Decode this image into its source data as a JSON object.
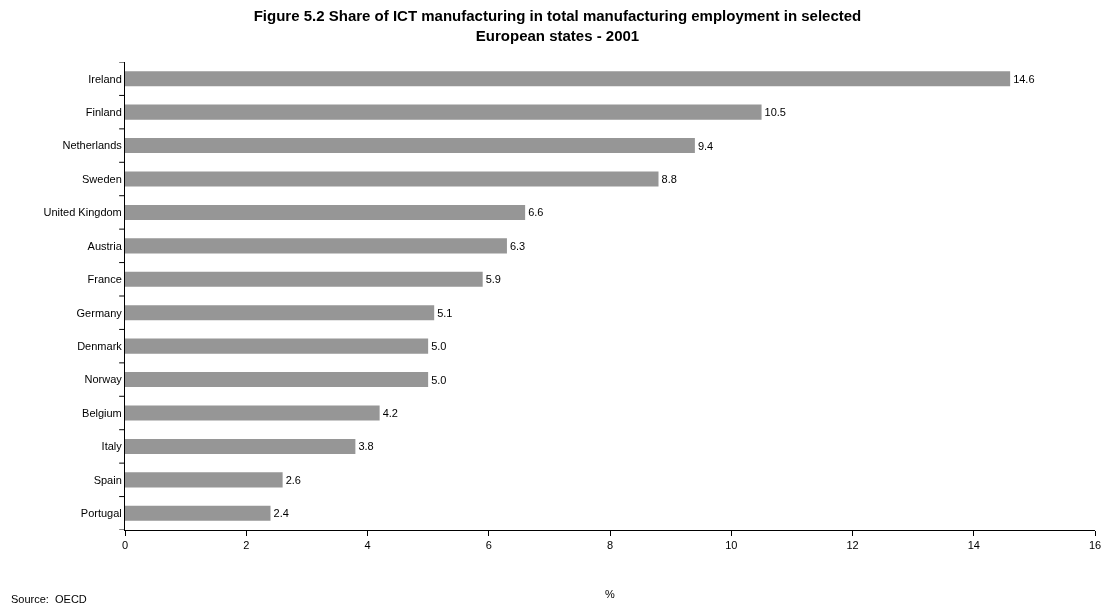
{
  "chart_data": {
    "type": "bar",
    "orientation": "horizontal",
    "title": "Figure 5.2 Share of ICT manufacturing in total manufacturing employment in selected European states - 2001",
    "xlabel": "%",
    "categories": [
      "Ireland",
      "Finland",
      "Netherlands",
      "Sweden",
      "United Kingdom",
      "Austria",
      "France",
      "Germany",
      "Denmark",
      "Norway",
      "Belgium",
      "Italy",
      "Spain",
      "Portugal"
    ],
    "values": [
      14.6,
      10.5,
      9.4,
      8.8,
      6.6,
      6.3,
      5.9,
      5.1,
      5.0,
      5.0,
      4.2,
      3.8,
      2.6,
      2.4
    ],
    "color": "#969696",
    "value_labels": [
      "14.6",
      "10.5",
      "9.4",
      "8.8",
      "6.6",
      "6.3",
      "5.9",
      "5.1",
      "5.0",
      "5.0",
      "4.2",
      "3.8",
      "2.6",
      "2.4"
    ],
    "xlim": [
      0,
      16
    ],
    "xticks": [
      0,
      2,
      4,
      6,
      8,
      10,
      12,
      14,
      16
    ],
    "grid": false,
    "annotations": [
      "Source:  OECD"
    ]
  }
}
